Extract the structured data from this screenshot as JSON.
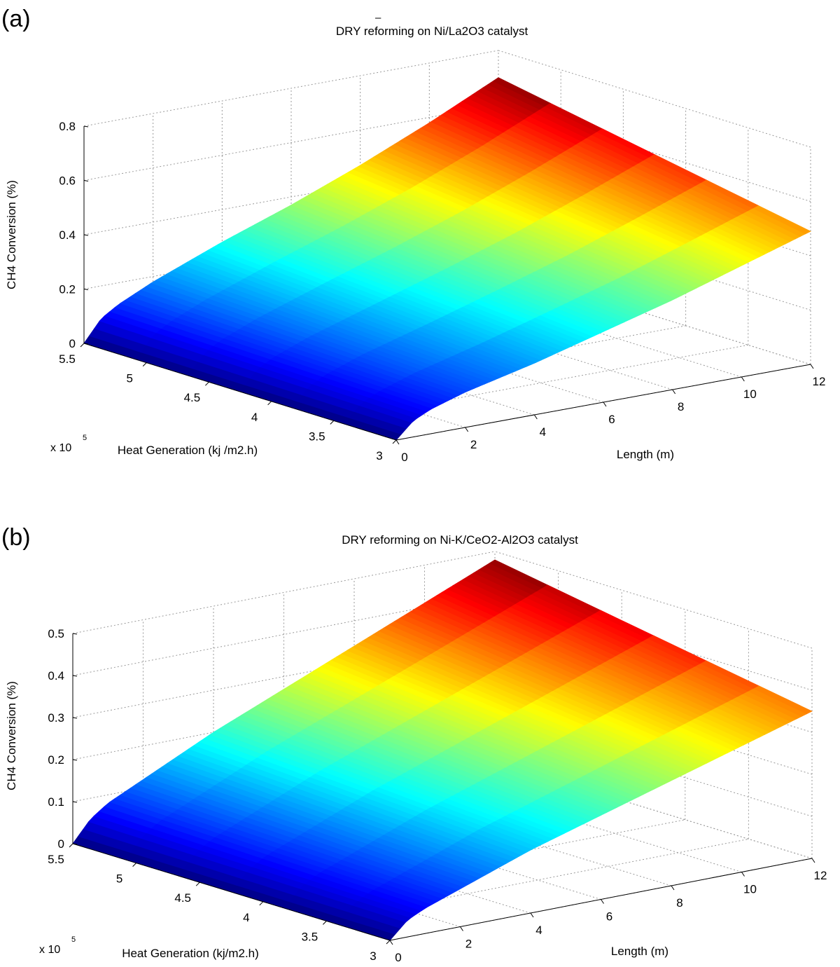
{
  "panels": [
    {
      "label": "(a)",
      "title": "DRY reforming on Ni/La2O3 catalyst",
      "chart_data": {
        "type": "surface",
        "title": "DRY reforming on Ni/La2O3 catalyst",
        "xlabel": "Length (m)",
        "ylabel": "Heat Generation (kj /m2.h)",
        "zlabel": "CH4 Conversion (%)",
        "x_exponent_label": "x 10",
        "x_exponent_power": "5",
        "xlim": [
          0,
          12
        ],
        "ylim": [
          3,
          5.5
        ],
        "zlim": [
          0,
          0.8
        ],
        "x_ticks": [
          "0",
          "2",
          "4",
          "6",
          "8",
          "10",
          "12"
        ],
        "y_ticks": [
          "3",
          "3.5",
          "4",
          "4.5",
          "5",
          "5.5"
        ],
        "z_ticks": [
          "0",
          "0.2",
          "0.4",
          "0.6",
          "0.8"
        ],
        "grid": true,
        "colormap": "jet",
        "surface": {
          "length_m": [
            0,
            0.5,
            1,
            2,
            3,
            4,
            6,
            8,
            10,
            12
          ],
          "heat_generation_x1e5": [
            3,
            5.5
          ],
          "conversion_at_5.5e5": [
            0,
            0.08,
            0.12,
            0.18,
            0.23,
            0.28,
            0.37,
            0.47,
            0.58,
            0.7
          ],
          "conversion_at_3e5": [
            0,
            0.06,
            0.09,
            0.13,
            0.16,
            0.19,
            0.26,
            0.33,
            0.41,
            0.49
          ]
        }
      }
    },
    {
      "label": "(b)",
      "title": "DRY reforming on Ni-K/CeO2-Al2O3 catalyst",
      "chart_data": {
        "type": "surface",
        "title": "DRY reforming on Ni-K/CeO2-Al2O3 catalyst",
        "xlabel": "Length (m)",
        "ylabel": "Heat Generation (kj/m2.h)",
        "zlabel": "CH4 Conversion (%)",
        "x_exponent_label": "x 10",
        "x_exponent_power": "5",
        "xlim": [
          0,
          12
        ],
        "ylim": [
          3,
          5.5
        ],
        "zlim": [
          0,
          0.5
        ],
        "x_ticks": [
          "0",
          "2",
          "4",
          "6",
          "8",
          "10",
          "12"
        ],
        "y_ticks": [
          "3",
          "3.5",
          "4",
          "4.5",
          "5",
          "5.5"
        ],
        "z_ticks": [
          "0",
          "0.1",
          "0.2",
          "0.3",
          "0.4",
          "0.5"
        ],
        "grid": true,
        "colormap": "jet",
        "surface": {
          "length_m": [
            0,
            0.5,
            1,
            2,
            3,
            4,
            6,
            8,
            10,
            12
          ],
          "heat_generation_x1e5": [
            3,
            5.5
          ],
          "conversion_at_5.5e5": [
            0,
            0.05,
            0.08,
            0.12,
            0.16,
            0.2,
            0.27,
            0.34,
            0.41,
            0.48
          ],
          "conversion_at_3e5": [
            0,
            0.04,
            0.06,
            0.09,
            0.12,
            0.15,
            0.2,
            0.25,
            0.3,
            0.35
          ]
        }
      }
    }
  ]
}
